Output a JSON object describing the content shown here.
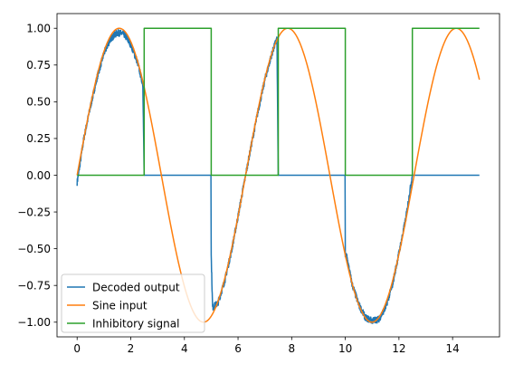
{
  "chart_data": {
    "type": "line",
    "title": "",
    "xlabel": "",
    "ylabel": "",
    "xlim": [
      -0.75,
      15.75
    ],
    "ylim": [
      -1.1,
      1.1
    ],
    "xticks": [
      0,
      2,
      4,
      6,
      8,
      10,
      12,
      14
    ],
    "xtick_labels": [
      "0",
      "2",
      "4",
      "6",
      "8",
      "10",
      "12",
      "14"
    ],
    "yticks": [
      -1.0,
      -0.75,
      -0.5,
      -0.25,
      0.0,
      0.25,
      0.5,
      0.75,
      1.0
    ],
    "ytick_labels": [
      "−1.00",
      "−0.75",
      "−0.50",
      "−0.25",
      "0.00",
      "0.25",
      "0.50",
      "0.75",
      "1.00"
    ],
    "grid": false,
    "legend_position": "lower-left",
    "series": [
      {
        "name": "Decoded output",
        "color": "#1f77b4",
        "noisy": true,
        "x": [
          0,
          0.25,
          0.5,
          0.75,
          1.0,
          1.25,
          1.5,
          1.75,
          2.0,
          2.25,
          2.45,
          2.5,
          2.55,
          4.99,
          5.0,
          5.05,
          5.25,
          5.5,
          5.75,
          6.0,
          6.25,
          6.5,
          6.75,
          7.0,
          7.25,
          7.45,
          7.5,
          7.55,
          9.99,
          10.0,
          10.05,
          10.25,
          10.5,
          10.75,
          11.0,
          11.25,
          11.5,
          11.75,
          12.0,
          12.25,
          12.5,
          15.0
        ],
        "y": [
          -0.05,
          0.25,
          0.47,
          0.67,
          0.83,
          0.93,
          0.97,
          0.96,
          0.89,
          0.77,
          0.62,
          0.0,
          0.0,
          0.0,
          -0.55,
          -0.9,
          -0.87,
          -0.72,
          -0.52,
          -0.28,
          -0.03,
          0.21,
          0.44,
          0.65,
          0.82,
          0.93,
          0.0,
          0.0,
          0.0,
          -0.55,
          -0.55,
          -0.74,
          -0.88,
          -0.97,
          -0.99,
          -0.98,
          -0.9,
          -0.75,
          -0.53,
          -0.3,
          0.0,
          0.0
        ]
      },
      {
        "name": "Sine input",
        "color": "#ff7f0e",
        "function": "sin",
        "x_range": [
          0,
          15
        ]
      },
      {
        "name": "Inhibitory signal",
        "color": "#2ca02c",
        "x": [
          0,
          2.5,
          2.5,
          5.0,
          5.0,
          7.5,
          7.5,
          10.0,
          10.0,
          12.5,
          12.5,
          15.0
        ],
        "y": [
          0,
          0,
          1,
          1,
          0,
          0,
          1,
          1,
          0,
          0,
          1,
          1
        ]
      }
    ]
  }
}
